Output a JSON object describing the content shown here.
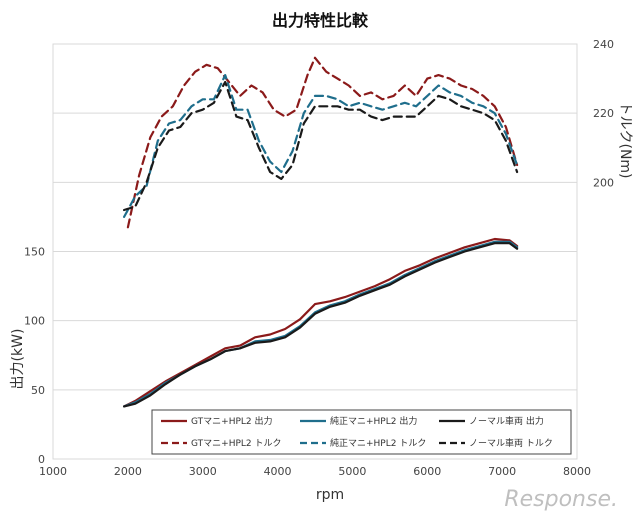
{
  "chart_data": {
    "type": "line",
    "title": "出力特性比較",
    "xlabel": "rpm",
    "ylabel": "出力(kW)",
    "y2label": "トルク(Nm)",
    "xlim": [
      1000,
      8000
    ],
    "ylim": [
      0,
      300
    ],
    "y2lim": [
      120,
      240
    ],
    "x_ticks": [
      "1000",
      "2000",
      "3000",
      "4000",
      "5000",
      "6000",
      "7000",
      "8000"
    ],
    "y_ticks": [
      "0",
      "50",
      "100",
      "150"
    ],
    "y2_ticks": [
      "200",
      "220",
      "240"
    ],
    "grid": true,
    "legend_position": "bottom-inside",
    "series": [
      {
        "name": "GTマニ+HPL2 出力",
        "axis": "left",
        "color": "#8b1a1a",
        "dash": "solid",
        "x": [
          1950,
          2100,
          2300,
          2500,
          2700,
          2900,
          3100,
          3300,
          3500,
          3700,
          3900,
          4100,
          4300,
          4500,
          4700,
          4900,
          5100,
          5300,
          5500,
          5700,
          5900,
          6100,
          6300,
          6500,
          6700,
          6900,
          7100,
          7200
        ],
        "y": [
          38,
          42,
          49,
          56,
          62,
          68,
          74,
          80,
          82,
          88,
          90,
          94,
          101,
          112,
          114,
          117,
          121,
          125,
          130,
          136,
          140,
          145,
          149,
          153,
          156,
          159,
          158,
          154
        ]
      },
      {
        "name": "純正マニ+HPL2 出力",
        "axis": "left",
        "color": "#1f6e8c",
        "dash": "solid",
        "x": [
          1950,
          2100,
          2300,
          2500,
          2700,
          2900,
          3100,
          3300,
          3500,
          3700,
          3900,
          4100,
          4300,
          4500,
          4700,
          4900,
          5100,
          5300,
          5500,
          5700,
          5900,
          6100,
          6300,
          6500,
          6700,
          6900,
          7100,
          7200
        ],
        "y": [
          38,
          41,
          47,
          55,
          61,
          67,
          72,
          78,
          80,
          85,
          86,
          89,
          96,
          106,
          111,
          114,
          119,
          123,
          127,
          133,
          138,
          143,
          147,
          151,
          154,
          157,
          157,
          153
        ]
      },
      {
        "name": "ノーマル車両 出力",
        "axis": "left",
        "color": "#1a1a1a",
        "dash": "solid",
        "x": [
          1950,
          2100,
          2300,
          2500,
          2700,
          2900,
          3100,
          3300,
          3500,
          3700,
          3900,
          4100,
          4300,
          4500,
          4700,
          4900,
          5100,
          5300,
          5500,
          5700,
          5900,
          6100,
          6300,
          6500,
          6700,
          6900,
          7100,
          7200
        ],
        "y": [
          38,
          40,
          46,
          54,
          61,
          67,
          72,
          78,
          80,
          84,
          85,
          88,
          95,
          105,
          110,
          113,
          118,
          122,
          126,
          132,
          137,
          142,
          146,
          150,
          153,
          156,
          156,
          152
        ]
      },
      {
        "name": "GTマニ+HPL2 トルク",
        "axis": "right",
        "color": "#8b1a1a",
        "dash": "dashed",
        "x": [
          2000,
          2150,
          2300,
          2450,
          2600,
          2750,
          2900,
          3050,
          3200,
          3350,
          3500,
          3650,
          3800,
          3950,
          4100,
          4250,
          4400,
          4500,
          4650,
          4800,
          4950,
          5100,
          5250,
          5400,
          5550,
          5700,
          5850,
          6000,
          6150,
          6300,
          6450,
          6600,
          6750,
          6900,
          7050,
          7200
        ],
        "y": [
          187,
          202,
          213,
          219,
          222,
          228,
          232,
          234,
          233,
          229,
          225,
          228,
          226,
          221,
          219,
          221,
          231,
          236,
          232,
          230,
          228,
          225,
          226,
          224,
          225,
          228,
          225,
          230,
          231,
          230,
          228,
          227,
          225,
          222,
          216,
          205
        ]
      },
      {
        "name": "純正マニ+HPL2 トルク",
        "axis": "right",
        "color": "#1f6e8c",
        "dash": "dashed",
        "x": [
          1950,
          2100,
          2250,
          2400,
          2550,
          2700,
          2850,
          3000,
          3150,
          3300,
          3450,
          3600,
          3750,
          3900,
          4050,
          4200,
          4350,
          4500,
          4650,
          4800,
          4950,
          5100,
          5250,
          5400,
          5550,
          5700,
          5850,
          6000,
          6150,
          6300,
          6450,
          6600,
          6750,
          6900,
          7050,
          7200
        ],
        "y": [
          190,
          196,
          199,
          212,
          217,
          218,
          222,
          224,
          224,
          231,
          221,
          221,
          212,
          206,
          203,
          209,
          220,
          225,
          225,
          224,
          222,
          223,
          222,
          221,
          222,
          223,
          222,
          225,
          228,
          226,
          225,
          223,
          222,
          220,
          214,
          205
        ]
      },
      {
        "name": "ノーマル車両 トルク",
        "axis": "right",
        "color": "#1a1a1a",
        "dash": "dashed",
        "x": [
          1950,
          2100,
          2250,
          2400,
          2550,
          2700,
          2850,
          3000,
          3150,
          3300,
          3450,
          3600,
          3750,
          3900,
          4050,
          4200,
          4350,
          4500,
          4650,
          4800,
          4950,
          5100,
          5250,
          5400,
          5550,
          5700,
          5850,
          6000,
          6150,
          6300,
          6450,
          6600,
          6750,
          6900,
          7050,
          7200
        ],
        "y": [
          192,
          193,
          200,
          210,
          215,
          216,
          220,
          221,
          223,
          229,
          219,
          218,
          210,
          203,
          201,
          205,
          217,
          222,
          222,
          222,
          221,
          221,
          219,
          218,
          219,
          219,
          219,
          222,
          225,
          224,
          222,
          221,
          220,
          218,
          212,
          203
        ]
      }
    ]
  },
  "watermark": "Response."
}
